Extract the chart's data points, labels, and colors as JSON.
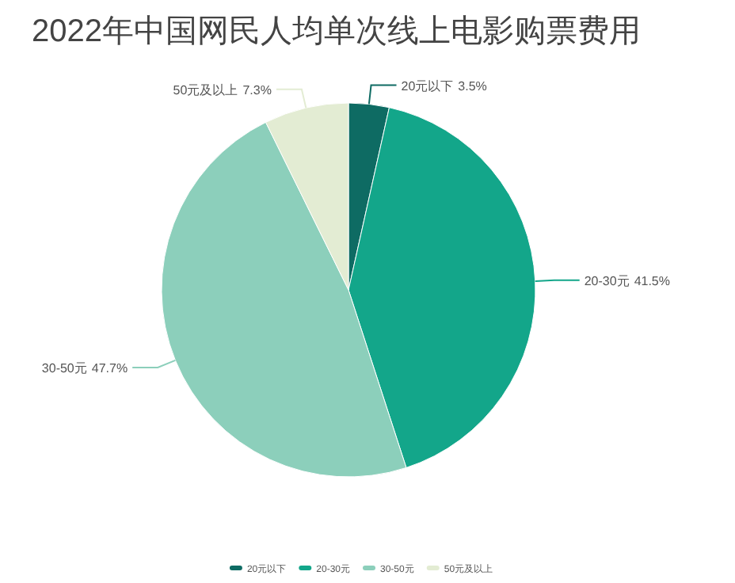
{
  "chart_data": {
    "type": "pie",
    "title": "2022年中国网民人均单次线上电影购票费用",
    "categories": [
      "20元以下",
      "20-30元",
      "30-50元",
      "50元及以上"
    ],
    "values": [
      3.5,
      41.5,
      47.7,
      7.3
    ],
    "colors": [
      "#0e6b63",
      "#13a68a",
      "#8ccfbb",
      "#e3ecd3"
    ],
    "value_labels": [
      "3.5%",
      "41.5%",
      "47.7%",
      "7.3%"
    ],
    "legend": "bottom"
  }
}
